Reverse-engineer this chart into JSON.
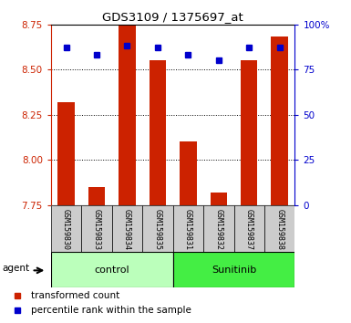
{
  "title": "GDS3109 / 1375697_at",
  "categories": [
    "GSM159830",
    "GSM159833",
    "GSM159834",
    "GSM159835",
    "GSM159831",
    "GSM159832",
    "GSM159837",
    "GSM159838"
  ],
  "bar_values": [
    8.32,
    7.85,
    8.75,
    8.55,
    8.1,
    7.82,
    8.55,
    8.68
  ],
  "percentile_values": [
    87,
    83,
    88,
    87,
    83,
    80,
    87,
    87
  ],
  "ylim_left": [
    7.75,
    8.75
  ],
  "ylim_right": [
    0,
    100
  ],
  "yticks_left": [
    7.75,
    8.0,
    8.25,
    8.5,
    8.75
  ],
  "yticks_right": [
    0,
    25,
    50,
    75,
    100
  ],
  "ytick_labels_right": [
    "0",
    "25",
    "50",
    "75",
    "100%"
  ],
  "bar_color": "#cc2200",
  "marker_color": "#0000cc",
  "bar_bottom": 7.75,
  "group_labels": [
    "control",
    "Sunitinib"
  ],
  "group_ranges": [
    [
      0,
      3
    ],
    [
      4,
      7
    ]
  ],
  "group_color_control": "#bbffbb",
  "group_color_sunitinib": "#44ee44",
  "agent_label": "agent",
  "legend_bar_label": "transformed count",
  "legend_marker_label": "percentile rank within the sample",
  "title_color": "black",
  "left_axis_color": "#cc2200",
  "right_axis_color": "#0000cc",
  "bar_width": 0.55,
  "tick_label_area_color": "#cccccc"
}
